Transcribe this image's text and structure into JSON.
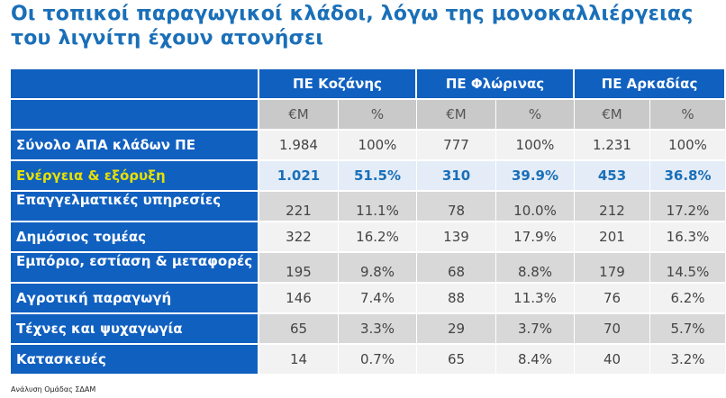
{
  "title": "Οι τοπικοί παραγωγικοί κλάδοι, λόγω της μονοκαλλιέργειας του λιγνίτη έχουν ατονήσει",
  "regions": [
    "ΠΕ Κοζάνης",
    "ΠΕ Φλώρινας",
    "ΠΕ Αρκαδίας"
  ],
  "units": [
    "€Μ",
    "%"
  ],
  "rows": [
    {
      "label": "Σύνολο ΑΠΑ κλάδων ΠΕ",
      "values": [
        "1.984",
        "100%",
        "777",
        "100%",
        "1.231",
        "100%"
      ]
    },
    {
      "label": "Ενέργεια & εξόρυξη",
      "values": [
        "1.021",
        "51.5%",
        "310",
        "39.9%",
        "453",
        "36.8%"
      ]
    },
    {
      "label": "Επαγγελματικές υπηρεσίες",
      "values": [
        "221",
        "11.1%",
        "78",
        "10.0%",
        "212",
        "17.2%"
      ]
    },
    {
      "label": "Δημόσιος τομέας",
      "values": [
        "322",
        "16.2%",
        "139",
        "17.9%",
        "201",
        "16.3%"
      ]
    },
    {
      "label": "Εμπόριο, εστίαση & μεταφορές",
      "values": [
        "195",
        "9.8%",
        "68",
        "8.8%",
        "179",
        "14.5%"
      ]
    },
    {
      "label": "Αγροτική παραγωγή",
      "values": [
        "146",
        "7.4%",
        "88",
        "11.3%",
        "76",
        "6.2%"
      ]
    },
    {
      "label": "Τέχνες και ψυχαγωγία",
      "values": [
        "65",
        "3.3%",
        "29",
        "3.7%",
        "70",
        "5.7%"
      ]
    },
    {
      "label": "Κατασκευές",
      "values": [
        "14",
        "0.7%",
        "65",
        "8.4%",
        "40",
        "3.2%"
      ]
    }
  ],
  "source": "Ανάλυση Ομάδας ΣΔΑΜ",
  "colors": {
    "title": "#1a6fb8",
    "header": "#1060c0",
    "highlight_text": "#e8e000"
  }
}
